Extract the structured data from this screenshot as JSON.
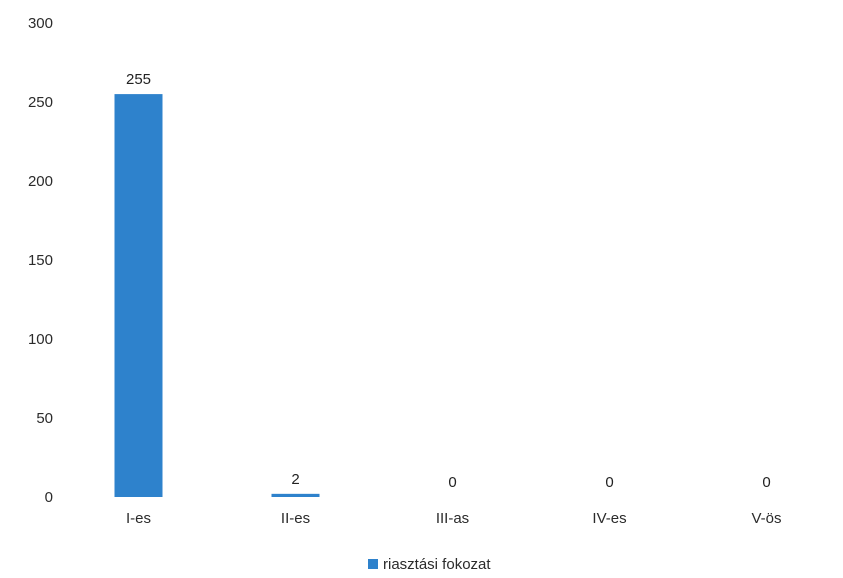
{
  "chart_data": {
    "type": "bar",
    "categories": [
      "I-es",
      "II-es",
      "III-as",
      "IV-es",
      "V-ös"
    ],
    "series": [
      {
        "name": "riasztási fokozat",
        "values": [
          255,
          2,
          0,
          0,
          0
        ],
        "color": "#2e82cc"
      }
    ],
    "data_labels": [
      "255",
      "2",
      "0",
      "0",
      "0"
    ],
    "ylim": [
      0,
      300
    ],
    "yticks": [
      0,
      50,
      100,
      150,
      200,
      250,
      300
    ],
    "grid": false,
    "legend_position": "bottom-center"
  }
}
